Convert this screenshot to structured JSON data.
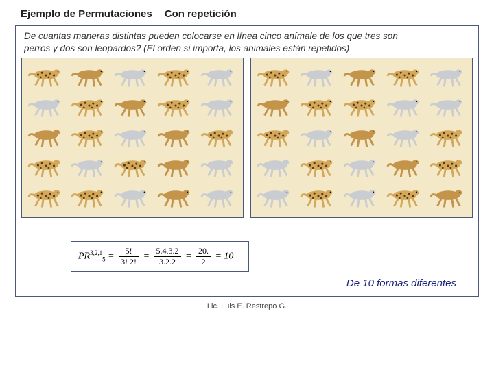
{
  "header": {
    "title": "Ejemplo de Permutaciones",
    "subtitle": "Con repetición"
  },
  "question": {
    "line1": "De cuantas maneras distintas  pueden colocarse en línea cinco anímale de los que tres son",
    "line2": "perros y dos son leopardos?      (El orden si importa, los animales están repetidos)"
  },
  "animals": {
    "types": {
      "leopard": {
        "body": "#d4a85a",
        "spots": "#5a3810"
      },
      "dogGray": {
        "body": "#c9ccd0",
        "ear": "#888"
      },
      "dogBrown": {
        "body": "#c4944a",
        "ear": "#7a5020"
      }
    },
    "leftPanel": [
      [
        "leopard",
        "dogBrown",
        "dogGray",
        "leopard",
        "dogGray"
      ],
      [
        "dogGray",
        "leopard",
        "dogBrown",
        "leopard",
        "dogGray"
      ],
      [
        "dogBrown",
        "leopard",
        "dogGray",
        "dogBrown",
        "leopard"
      ],
      [
        "leopard",
        "dogGray",
        "leopard",
        "dogBrown",
        "dogGray"
      ],
      [
        "leopard",
        "leopard",
        "dogGray",
        "dogBrown",
        "dogGray"
      ]
    ],
    "rightPanel": [
      [
        "leopard",
        "dogGray",
        "dogBrown",
        "leopard",
        "dogGray"
      ],
      [
        "dogBrown",
        "leopard",
        "leopard",
        "dogGray",
        "dogGray"
      ],
      [
        "leopard",
        "dogGray",
        "dogBrown",
        "dogGray",
        "leopard"
      ],
      [
        "dogGray",
        "leopard",
        "dogGray",
        "dogBrown",
        "leopard"
      ],
      [
        "dogGray",
        "leopard",
        "dogGray",
        "leopard",
        "dogBrown"
      ]
    ]
  },
  "formula": {
    "prefix": "PR",
    "superscript": "3,2,1",
    "subscript": "5",
    "eq": "=",
    "frac1_num": "5!",
    "frac1_den": "3! 2!",
    "frac2_num": "5.4.3.2",
    "frac2_den": "3.2.2",
    "frac3_num": "20.",
    "frac3_den": "2",
    "result": "= 10"
  },
  "resultLine": "De 10 formas diferentes",
  "footer": "Lic. Luis E. Restrepo G."
}
